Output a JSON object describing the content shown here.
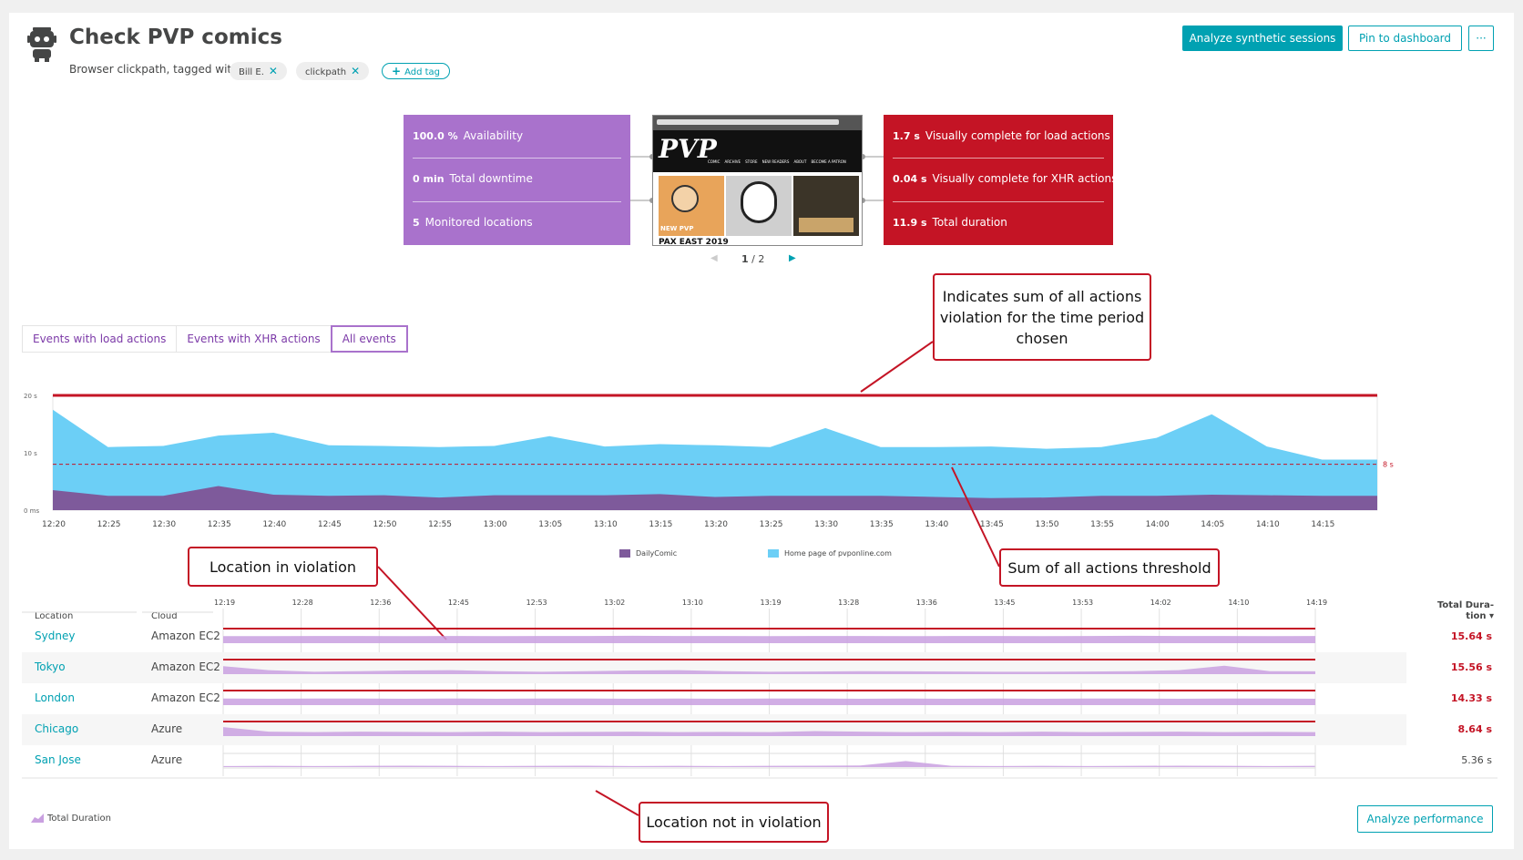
{
  "header": {
    "title": "Check PVP comics",
    "subtitle": "Browser clickpath, tagged with",
    "tags": [
      {
        "label": "Bill E."
      },
      {
        "label": "clickpath"
      }
    ],
    "add_tag_label": "Add tag",
    "buttons": {
      "analyze_sessions": "Analyze synthetic sessions",
      "pin_dashboard": "Pin to dashboard",
      "more": "···"
    }
  },
  "availability_box": {
    "color": "#a972cc",
    "rows": [
      {
        "value": "100.0 %",
        "label": "Availability"
      },
      {
        "value": "0 min",
        "label": "Total downtime"
      },
      {
        "value": "5",
        "label": "Monitored locations"
      }
    ]
  },
  "performance_box": {
    "color": "#c41425",
    "rows": [
      {
        "value": "1.7 s",
        "label": "Visually complete for load actions"
      },
      {
        "value": "0.04 s",
        "label": "Visually complete for XHR actions"
      },
      {
        "value": "11.9 s",
        "label": "Total duration"
      }
    ]
  },
  "screenshot": {
    "logo": "PVP",
    "nav": [
      "COMIC",
      "ARCHIVE",
      "STORE",
      "NEW READERS",
      "ABOUT",
      "BECOME A PATRON"
    ],
    "caption": "NEW PVP",
    "headline": "PAX EAST 2019"
  },
  "pager": {
    "current": "1",
    "total": "2",
    "separator": "/"
  },
  "callouts": {
    "sum": "Indicates sum of all actions violation for the time period chosen",
    "threshold": "Sum of all actions threshold",
    "violation": "Location in violation",
    "non_violation": "Location not in violation"
  },
  "tabs": [
    {
      "label": "Events with load actions",
      "active": false
    },
    {
      "label": "Events with XHR actions",
      "active": false
    },
    {
      "label": "All events",
      "active": true
    }
  ],
  "chart_data": {
    "type": "area",
    "x": [
      "12:20",
      "12:25",
      "12:30",
      "12:35",
      "12:40",
      "12:45",
      "12:50",
      "12:55",
      "13:00",
      "13:05",
      "13:10",
      "13:15",
      "13:20",
      "13:25",
      "13:30",
      "13:35",
      "13:40",
      "13:45",
      "13:50",
      "13:55",
      "14:00",
      "14:05",
      "14:10",
      "14:15",
      "14:19"
    ],
    "y_ticks": [
      "0 ms",
      "10 s",
      "20 s"
    ],
    "ylim": [
      0,
      20
    ],
    "threshold": {
      "value": 8,
      "label": "8 s",
      "color": "#c41425"
    },
    "violation_line": 20,
    "series": [
      {
        "name": "Home page of pvponline.com",
        "color": "#6ccff6",
        "values": [
          17.5,
          11,
          11.2,
          13,
          13.5,
          11.3,
          11.2,
          11,
          11.2,
          12.9,
          11.1,
          11.5,
          11.3,
          11,
          14.3,
          11,
          11,
          11.1,
          10.7,
          11,
          12.6,
          16.7,
          11.1,
          8.8,
          8.8
        ]
      },
      {
        "name": "DailyComic",
        "color": "#7e5a9b",
        "values": [
          3.5,
          2.5,
          2.5,
          4.2,
          2.7,
          2.5,
          2.6,
          2.2,
          2.6,
          2.6,
          2.6,
          2.8,
          2.3,
          2.5,
          2.5,
          2.5,
          2.3,
          2.1,
          2.2,
          2.5,
          2.5,
          2.7,
          2.6,
          2.5,
          2.5
        ]
      }
    ]
  },
  "table": {
    "headers": {
      "location": "Location",
      "cloud": "Cloud",
      "total_duration": "Total Dura-tion ▾"
    },
    "time_ticks": [
      "12:19",
      "12:28",
      "12:36",
      "12:45",
      "12:53",
      "13:02",
      "13:10",
      "13:19",
      "13:28",
      "13:36",
      "13:45",
      "13:53",
      "14:02",
      "14:10",
      "14:19"
    ],
    "rows": [
      {
        "location": "Sydney",
        "cloud": "Amazon EC2",
        "duration": "15.64 s",
        "violation": true,
        "spark": [
          0.35,
          0.35,
          0.36,
          0.36,
          0.35,
          0.36,
          0.35,
          0.36,
          0.36,
          0.37,
          0.36,
          0.36,
          0.35,
          0.36,
          0.36,
          0.35,
          0.36,
          0.36,
          0.35,
          0.36,
          0.37,
          0.36,
          0.36,
          0.35,
          0.36
        ]
      },
      {
        "location": "Tokyo",
        "cloud": "Amazon EC2",
        "duration": "15.56 s",
        "violation": true,
        "spark": [
          0.4,
          0.2,
          0.12,
          0.15,
          0.18,
          0.2,
          0.15,
          0.12,
          0.15,
          0.18,
          0.2,
          0.15,
          0.12,
          0.13,
          0.15,
          0.14,
          0.13,
          0.12,
          0.12,
          0.13,
          0.15,
          0.2,
          0.42,
          0.15,
          0.14
        ]
      },
      {
        "location": "London",
        "cloud": "Amazon EC2",
        "duration": "14.33 s",
        "violation": true,
        "spark": [
          0.33,
          0.32,
          0.33,
          0.33,
          0.32,
          0.33,
          0.32,
          0.33,
          0.33,
          0.32,
          0.33,
          0.32,
          0.33,
          0.33,
          0.32,
          0.33,
          0.32,
          0.33,
          0.32,
          0.33,
          0.33,
          0.32,
          0.33,
          0.33,
          0.32
        ]
      },
      {
        "location": "Chicago",
        "cloud": "Azure",
        "duration": "8.64 s",
        "violation": true,
        "spark": [
          0.45,
          0.22,
          0.2,
          0.22,
          0.21,
          0.2,
          0.22,
          0.2,
          0.21,
          0.22,
          0.2,
          0.21,
          0.2,
          0.25,
          0.22,
          0.2,
          0.21,
          0.2,
          0.22,
          0.2,
          0.21,
          0.22,
          0.2,
          0.21,
          0.2
        ]
      },
      {
        "location": "San Jose",
        "cloud": "Azure",
        "duration": "5.36 s",
        "violation": false,
        "spark": [
          0.05,
          0.06,
          0.05,
          0.06,
          0.07,
          0.06,
          0.05,
          0.06,
          0.07,
          0.05,
          0.06,
          0.05,
          0.06,
          0.07,
          0.08,
          0.3,
          0.06,
          0.05,
          0.06,
          0.05,
          0.06,
          0.07,
          0.06,
          0.05,
          0.06
        ]
      }
    ]
  },
  "footer": {
    "legend_label": "Total Duration",
    "analyze_performance": "Analyze performance"
  }
}
